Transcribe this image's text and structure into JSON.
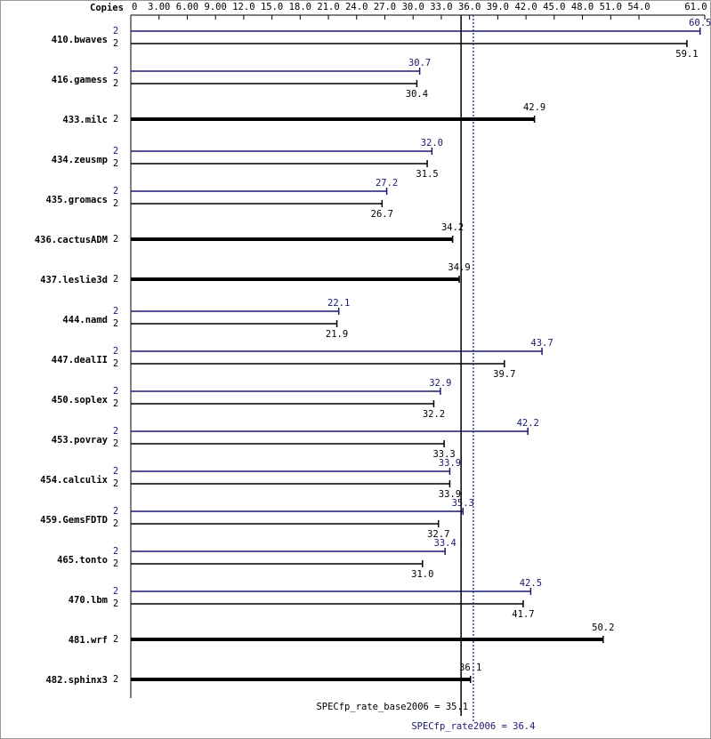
{
  "chart_data": {
    "type": "spec",
    "copies_label": "Copies",
    "categories": [
      "410.bwaves",
      "416.gamess",
      "433.milc",
      "434.zeusmp",
      "435.gromacs",
      "436.cactusADM",
      "437.leslie3d",
      "444.namd",
      "447.dealII",
      "450.soplex",
      "453.povray",
      "454.calculix",
      "459.GemsFDTD",
      "465.tonto",
      "470.lbm",
      "481.wrf",
      "482.sphinx3"
    ],
    "xlim": [
      0,
      61
    ],
    "xticks": [
      0,
      {
        "value": 3,
        "label": "3.00"
      },
      {
        "value": 6,
        "label": "6.00"
      },
      {
        "value": 9,
        "label": "9.00"
      },
      {
        "value": 12,
        "label": "12.0"
      },
      {
        "value": 15,
        "label": "15.0"
      },
      {
        "value": 18,
        "label": "18.0"
      },
      {
        "value": 21,
        "label": "21.0"
      },
      {
        "value": 24,
        "label": "24.0"
      },
      {
        "value": 27,
        "label": "27.0"
      },
      {
        "value": 30,
        "label": "30.0"
      },
      {
        "value": 33,
        "label": "33.0"
      },
      {
        "value": 36,
        "label": "36.0"
      },
      {
        "value": 39,
        "label": "39.0"
      },
      {
        "value": 42,
        "label": "42.0"
      },
      {
        "value": 45,
        "label": "45.0"
      },
      {
        "value": 48,
        "label": "48.0"
      },
      {
        "value": 51,
        "label": "51.0"
      },
      {
        "value": 54,
        "label": "54.0"
      },
      {
        "value": 61,
        "label": "61.0"
      }
    ],
    "series": [
      {
        "color": "#191970",
        "copies": [
          2,
          2,
          null,
          2,
          2,
          null,
          null,
          2,
          2,
          2,
          2,
          2,
          2,
          2,
          2,
          null,
          null
        ],
        "values": [
          60.5,
          30.7,
          null,
          32.0,
          27.2,
          null,
          null,
          22.1,
          43.7,
          32.9,
          42.2,
          33.9,
          35.3,
          33.4,
          42.5,
          null,
          null
        ],
        "value_labels": [
          "60.5",
          "30.7",
          null,
          "32.0",
          "27.2",
          null,
          null,
          "22.1",
          "43.7",
          "32.9",
          "42.2",
          "33.9",
          "35.3",
          "33.4",
          "42.5",
          null,
          null
        ]
      },
      {
        "color": "#000000",
        "copies": [
          2,
          2,
          2,
          2,
          2,
          2,
          2,
          2,
          2,
          2,
          2,
          2,
          2,
          2,
          2,
          2,
          2
        ],
        "values": [
          59.1,
          30.4,
          42.9,
          31.5,
          26.7,
          34.2,
          34.9,
          21.9,
          39.7,
          32.2,
          33.3,
          33.9,
          32.7,
          31.0,
          41.7,
          50.2,
          36.1
        ],
        "value_labels": [
          "59.1",
          "30.4",
          "42.9",
          "31.5",
          "26.7",
          "34.2",
          "34.9",
          "21.9",
          "39.7",
          "32.2",
          "33.3",
          "33.9",
          "32.7",
          "31.0",
          "41.7",
          "50.2",
          "36.1"
        ]
      }
    ],
    "reference_lines": [
      {
        "label": "SPECfp_rate_base2006 = 35.1",
        "value": 35.1,
        "color": "#000000"
      },
      {
        "label": "SPECfp_rate2006 = 36.4",
        "value": 36.4,
        "color": "#191970"
      }
    ]
  }
}
